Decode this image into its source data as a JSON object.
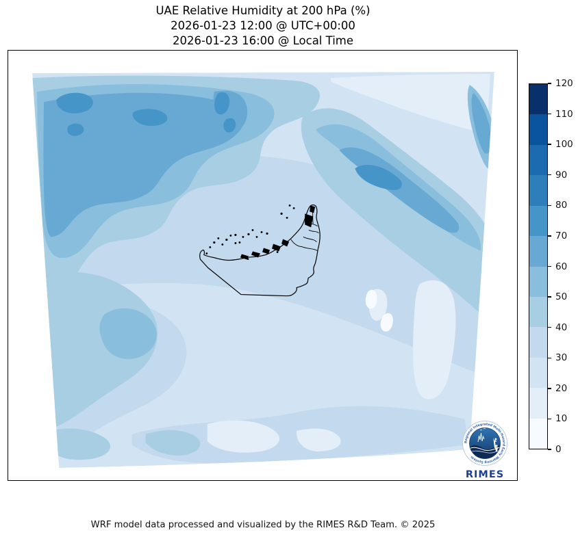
{
  "figure": {
    "title_line1": "UAE Relative Humidity at 200 hPa (%)",
    "title_line2": "2026-01-23 12:00 @ UTC+00:00",
    "title_line3": "2026-01-23 16:00 @ Local Time",
    "footer": "WRF model data processed and visualized by the RIMES R&D Team. © 2025"
  },
  "logo": {
    "name": "RIMES",
    "ring_text": "Regional Integrated Multi-Hazard Early Warning System"
  },
  "chart_data": {
    "type": "filled_contour_map",
    "title": "UAE Relative Humidity at 200 hPa (%)",
    "variable": "Relative Humidity",
    "pressure_level_hpa": 200,
    "units": "%",
    "valid_time_utc": "2026-01-23 12:00 @ UTC+00:00",
    "valid_time_local": "2026-01-23 16:00 @ Local Time",
    "region": "UAE and surrounding Gulf region (WRF model domain, warped map projection)",
    "overlay": "UAE national border, coastline, islands and urban areas drawn in black",
    "colorbar": {
      "colormap": "Blues",
      "orientation": "vertical-right",
      "range": [
        0,
        120
      ],
      "ticks": [
        0,
        10,
        20,
        30,
        40,
        50,
        60,
        70,
        80,
        90,
        100,
        110,
        120
      ],
      "tick_labels": [
        "0",
        "10",
        "20",
        "30",
        "40",
        "50",
        "60",
        "70",
        "80",
        "90",
        "100",
        "110",
        "120"
      ],
      "colors_low_to_high": [
        "#f7fbff",
        "#e3eef9",
        "#d2e3f3",
        "#c2d9ee",
        "#a8cee4",
        "#89bedc",
        "#67a9d2",
        "#4695c8",
        "#2e7ebc",
        "#1c6ab0",
        "#0a549e",
        "#08306b"
      ]
    },
    "field_summary": [
      {
        "area": "northwest quadrant (top-left of domain)",
        "rh_percent": "50-80, darkest cores 70-80"
      },
      {
        "area": "diagonal band from top-center toward east edge",
        "rh_percent": "40-70"
      },
      {
        "area": "narrow streak at upper east edge",
        "rh_percent": "50-70"
      },
      {
        "area": "central domain around UAE",
        "rh_percent": "20-40"
      },
      {
        "area": "pale patches east-center and bottom-center",
        "rh_percent": "0-20"
      },
      {
        "area": "southwest blobs near lower-left edge",
        "rh_percent": "40-60"
      },
      {
        "area": "top edge strip and top-right corner",
        "rh_percent": "10-30"
      }
    ]
  }
}
